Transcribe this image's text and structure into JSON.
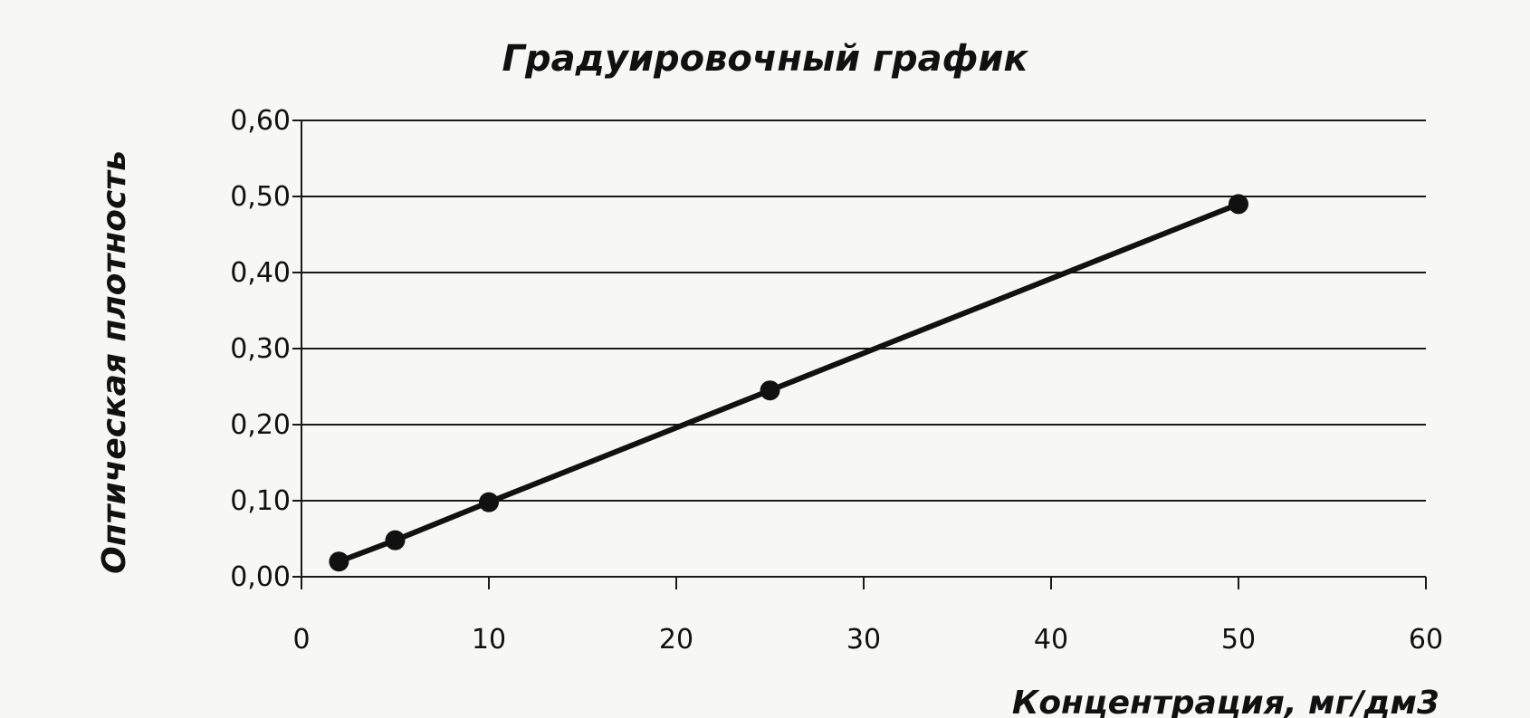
{
  "chart_data": {
    "type": "line",
    "title": "Градуировочный график",
    "xlabel": "Концентрация, мг/дм3",
    "ylabel": "Оптическая плотность",
    "xlim": [
      0,
      60
    ],
    "ylim": [
      0,
      0.6
    ],
    "x_ticks": [
      "0",
      "10",
      "20",
      "30",
      "40",
      "50",
      "60"
    ],
    "y_ticks": [
      "0,00",
      "0,10",
      "0,20",
      "0,30",
      "0,40",
      "0,50",
      "0,60"
    ],
    "grid": true,
    "series": [
      {
        "x": [
          2,
          5,
          10,
          25,
          50
        ],
        "values": [
          0.02,
          0.048,
          0.098,
          0.245,
          0.49
        ]
      }
    ],
    "colors": {
      "line": "#111111",
      "background": "#f7f7f5"
    }
  }
}
